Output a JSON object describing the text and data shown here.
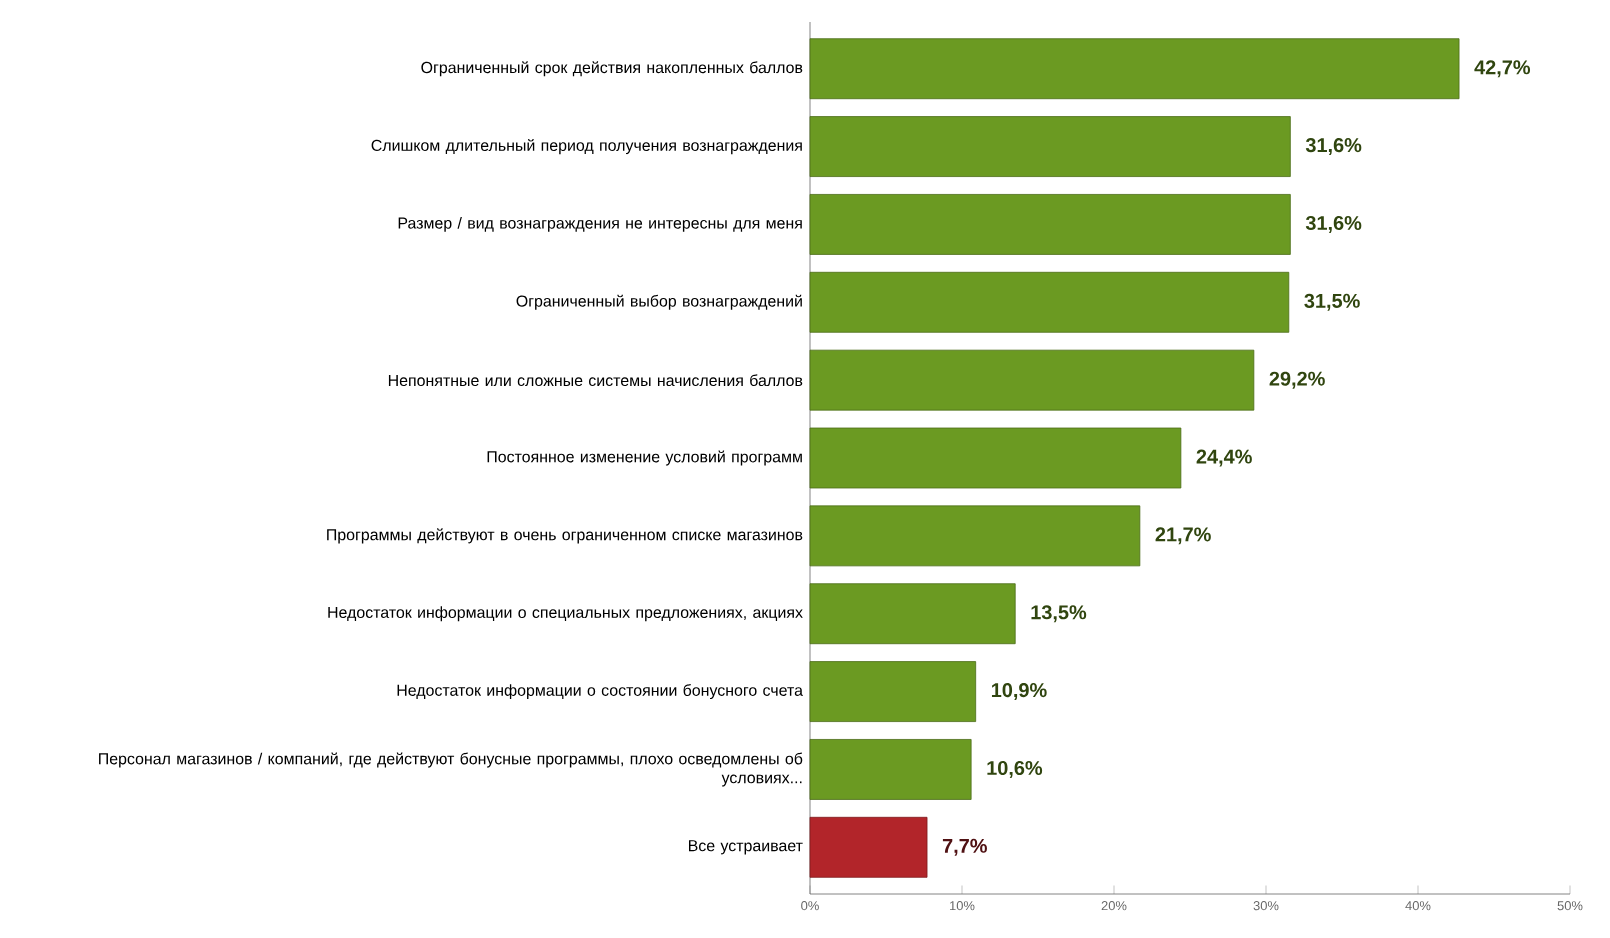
{
  "chart_data": {
    "type": "bar",
    "orientation": "horizontal",
    "categories": [
      "Ограниченный срок действия накопленных баллов",
      "Слишком длительный период получения вознаграждения",
      "Размер / вид вознаграждения не интересны для меня",
      "Ограниченный выбор вознаграждений",
      "Непонятные или сложные системы начисления баллов",
      "Постоянное изменение условий программ",
      "Программы действуют в очень ограниченном списке магазинов",
      "Недостаток информации о специальных предложениях, акциях",
      "Недостаток информации о состоянии бонусного счета",
      "Персонал магазинов / компаний, где действуют бонусные программы, плохо осведомлены об условиях...",
      "Все устраивает"
    ],
    "values": [
      42.7,
      31.6,
      31.6,
      31.5,
      29.2,
      24.4,
      21.7,
      13.5,
      10.9,
      10.6,
      7.7
    ],
    "value_labels": [
      "42,7%",
      "31,6%",
      "31,6%",
      "31,5%",
      "29,2%",
      "24,4%",
      "21,7%",
      "13,5%",
      "10,9%",
      "10,6%",
      "7,7%"
    ],
    "colors": [
      "#6b9a22",
      "#6b9a22",
      "#6b9a22",
      "#6b9a22",
      "#6b9a22",
      "#6b9a22",
      "#6b9a22",
      "#6b9a22",
      "#6b9a22",
      "#6b9a22",
      "#b2252a"
    ],
    "xlim": [
      0,
      50
    ],
    "xticks": [
      {
        "value": 0,
        "label": "0%"
      },
      {
        "value": 10,
        "label": "10%"
      },
      {
        "value": 20,
        "label": "20%"
      },
      {
        "value": 30,
        "label": "30%"
      },
      {
        "value": 40,
        "label": "40%"
      },
      {
        "value": 50,
        "label": "50%"
      }
    ],
    "grid": false
  }
}
